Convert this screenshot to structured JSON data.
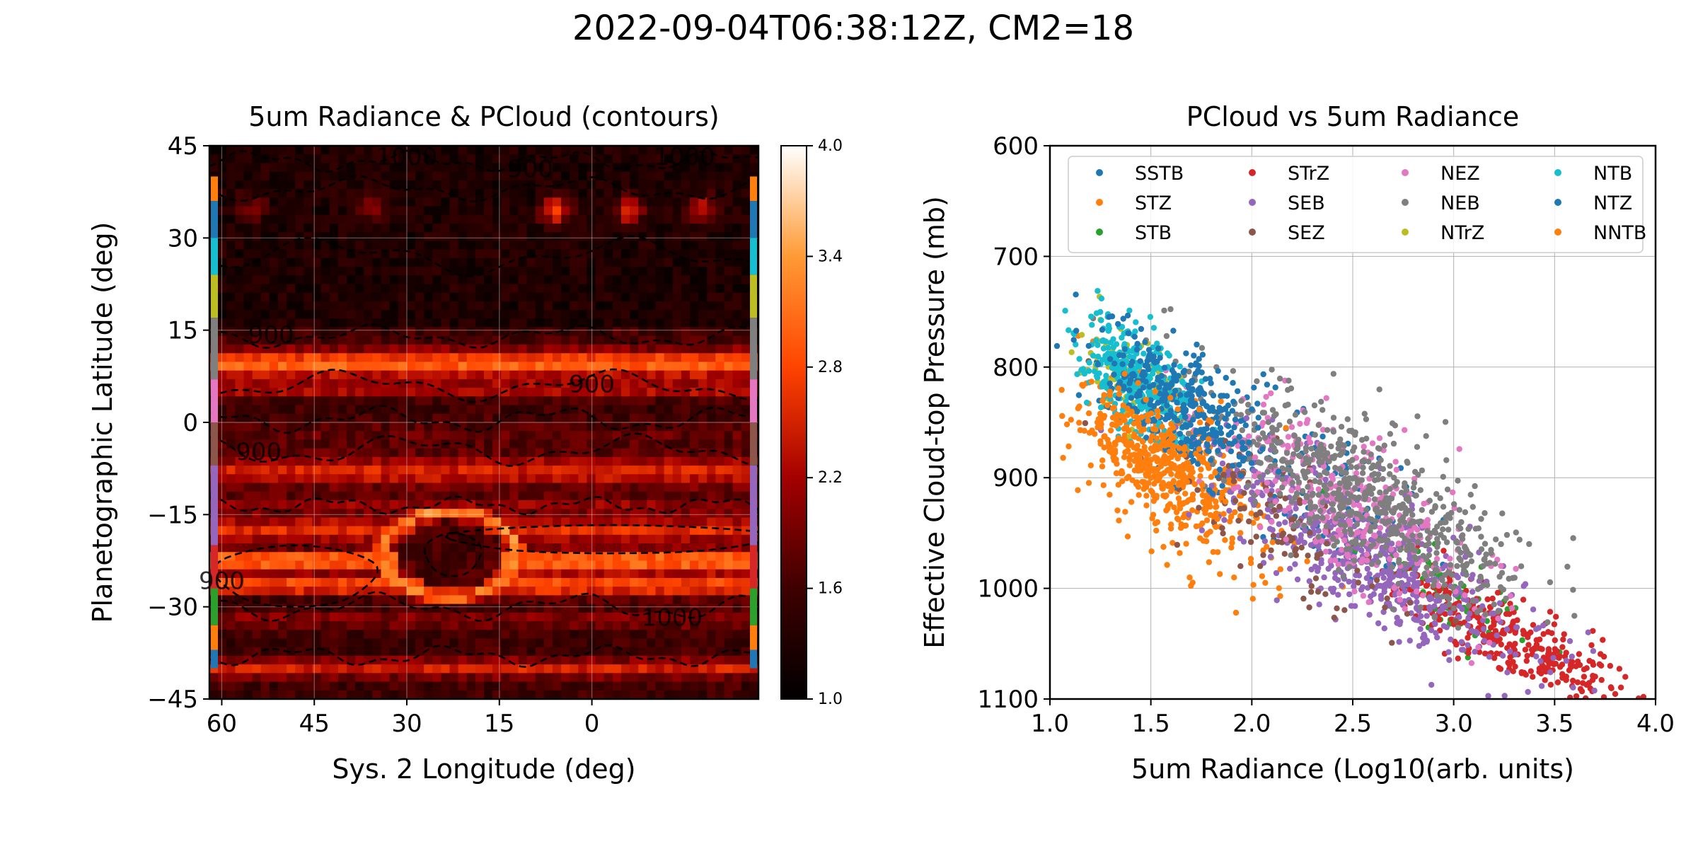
{
  "figure": {
    "suptitle": "2022-09-04T06:38:12Z, CM2=18"
  },
  "chart_data": [
    {
      "type": "heatmap",
      "title": "5um Radiance & PCloud (contours)",
      "xlabel": "Sys. 2 Longitude (deg)",
      "ylabel": "Planetographic Latitude (deg)",
      "xlim": [
        62,
        -27
      ],
      "ylim": [
        -45,
        45
      ],
      "xticks": [
        60,
        45,
        30,
        15,
        0
      ],
      "yticks": [
        45,
        30,
        15,
        0,
        -15,
        -30,
        -45
      ],
      "xtick_labels": [
        "60",
        "45",
        "30",
        "15",
        "0"
      ],
      "ytick_labels": [
        "45",
        "30",
        "15",
        "0",
        "−15",
        "−30",
        "−45"
      ],
      "grid": true,
      "colormap": "gist_heat",
      "colorbar": {
        "range": [
          1.0,
          4.0
        ],
        "ticks": [
          1.0,
          1.6,
          2.2,
          2.8,
          3.4,
          4.0
        ],
        "tick_labels": [
          "1.0",
          "1.6",
          "2.2",
          "2.8",
          "3.4",
          "4.0"
        ]
      },
      "bright_bands": [
        {
          "lat_center": 9.5,
          "lat_width": 4.5,
          "value": 3.0
        },
        {
          "lat_center": 5.5,
          "lat_width": 2.5,
          "value": 2.4
        },
        {
          "lat_center": -2,
          "lat_width": 4,
          "value": 1.8
        },
        {
          "lat_center": -8,
          "lat_width": 5,
          "value": 2.5
        },
        {
          "lat_center": -13.5,
          "lat_width": 3,
          "value": 2.1
        },
        {
          "lat_center": -17.5,
          "lat_width": 4,
          "value": 2.6
        },
        {
          "lat_center": -22.5,
          "lat_width": 3.5,
          "value": 3.2
        },
        {
          "lat_center": -26.5,
          "lat_width": 3.5,
          "value": 2.9
        },
        {
          "lat_center": -32,
          "lat_width": 3,
          "value": 2.0
        },
        {
          "lat_center": -40,
          "lat_width": 3,
          "value": 2.5
        }
      ],
      "dark_regions": [
        {
          "lat_range": [
            15,
            45
          ],
          "value": 1.25
        },
        {
          "lat_range": [
            -30,
            -19
          ],
          "lon_range": [
            62,
            35
          ],
          "value": 1.3
        }
      ],
      "hot_spots": [
        {
          "lon": 36,
          "lat": 35,
          "value": 2.2
        },
        {
          "lon": 55,
          "lat": 35,
          "value": 2.0
        },
        {
          "lon": 6,
          "lat": 34.5,
          "value": 2.9
        },
        {
          "lon": -6,
          "lat": 34.5,
          "value": 2.7
        },
        {
          "lon": -18,
          "lat": 34.5,
          "value": 2.5
        }
      ],
      "great_red_spot": {
        "lon_center": 23,
        "lat_center": -21.5,
        "lon_radius": 11,
        "lat_radius": 7,
        "ring_value": 3.3
      },
      "contour_labels": [
        {
          "text": "1000",
          "lon": 30,
          "lat": 43
        },
        {
          "text": "900",
          "lon": 10,
          "lat": 41
        },
        {
          "text": "1000",
          "lon": -15,
          "lat": 43
        },
        {
          "text": "900",
          "lon": 52,
          "lat": 14
        },
        {
          "text": "900",
          "lon": 0,
          "lat": 6
        },
        {
          "text": "900",
          "lon": 54,
          "lat": -5
        },
        {
          "text": "900",
          "lon": 60,
          "lat": -26
        },
        {
          "text": "1000",
          "lon": -13,
          "lat": -32
        }
      ],
      "side_bars": [
        {
          "lat_range": [
            40,
            36
          ],
          "color": "#ff7f0e"
        },
        {
          "lat_range": [
            36,
            30
          ],
          "color": "#1f77b4"
        },
        {
          "lat_range": [
            30,
            24
          ],
          "color": "#17becf"
        },
        {
          "lat_range": [
            24,
            17
          ],
          "color": "#bcbd22"
        },
        {
          "lat_range": [
            17,
            7
          ],
          "color": "#7f7f7f"
        },
        {
          "lat_range": [
            7,
            0
          ],
          "color": "#e377c2"
        },
        {
          "lat_range": [
            0,
            -7
          ],
          "color": "#8c564b"
        },
        {
          "lat_range": [
            -7,
            -20
          ],
          "color": "#9467bd"
        },
        {
          "lat_range": [
            -20,
            -27
          ],
          "color": "#d62728"
        },
        {
          "lat_range": [
            -27,
            -33
          ],
          "color": "#2ca02c"
        },
        {
          "lat_range": [
            -33,
            -37
          ],
          "color": "#ff7f0e"
        },
        {
          "lat_range": [
            -37,
            -40
          ],
          "color": "#1f77b4"
        }
      ]
    },
    {
      "type": "scatter",
      "title": "PCloud vs 5um Radiance",
      "xlabel": "5um Radiance (Log10(arb. units)",
      "ylabel": "Effective Cloud-top Pressure (mb)",
      "xlim": [
        1.0,
        4.0
      ],
      "ylim": [
        1100,
        600
      ],
      "y_inverted": true,
      "xticks": [
        1.0,
        1.5,
        2.0,
        2.5,
        3.0,
        3.5,
        4.0
      ],
      "xtick_labels": [
        "1.0",
        "1.5",
        "2.0",
        "2.5",
        "3.0",
        "3.5",
        "4.0"
      ],
      "yticks": [
        600,
        700,
        800,
        900,
        1000,
        1100
      ],
      "ytick_labels": [
        "600",
        "700",
        "800",
        "900",
        "1000",
        "1100"
      ],
      "grid": true,
      "legend_placement": "upper-left",
      "legend_columns": 4,
      "series": [
        {
          "name": "SSTB",
          "color": "#1f77b4",
          "n": 120,
          "cx": 2.3,
          "cy": 905,
          "sx": 0.4,
          "sy": 35
        },
        {
          "name": "STZ",
          "color": "#ff7f0e",
          "n": 330,
          "cx": 1.65,
          "cy": 905,
          "sx": 0.25,
          "sy": 35
        },
        {
          "name": "STB",
          "color": "#2ca02c",
          "n": 80,
          "cx": 2.95,
          "cy": 1003,
          "sx": 0.2,
          "sy": 18
        },
        {
          "name": "STrZ",
          "color": "#d62728",
          "n": 340,
          "cx": 3.3,
          "cy": 1048,
          "sx": 0.3,
          "sy": 18
        },
        {
          "name": "SEB",
          "color": "#9467bd",
          "n": 560,
          "cx": 2.6,
          "cy": 975,
          "sx": 0.42,
          "sy": 30
        },
        {
          "name": "SEZ",
          "color": "#8c564b",
          "n": 120,
          "cx": 2.1,
          "cy": 935,
          "sx": 0.3,
          "sy": 30
        },
        {
          "name": "NEZ",
          "color": "#e377c2",
          "n": 340,
          "cx": 2.45,
          "cy": 920,
          "sx": 0.35,
          "sy": 30
        },
        {
          "name": "NEB",
          "color": "#7f7f7f",
          "n": 620,
          "cx": 2.55,
          "cy": 915,
          "sx": 0.4,
          "sy": 30
        },
        {
          "name": "NTrZ",
          "color": "#bcbd22",
          "n": 90,
          "cx": 1.4,
          "cy": 810,
          "sx": 0.12,
          "sy": 22
        },
        {
          "name": "NTB",
          "color": "#17becf",
          "n": 360,
          "cx": 1.42,
          "cy": 810,
          "sx": 0.13,
          "sy": 22
        },
        {
          "name": "NTZ",
          "color": "#1f77b4",
          "n": 330,
          "cx": 1.65,
          "cy": 835,
          "sx": 0.2,
          "sy": 25
        },
        {
          "name": "NNTB",
          "color": "#ff7f0e",
          "n": 280,
          "cx": 1.5,
          "cy": 880,
          "sx": 0.15,
          "sy": 22
        }
      ]
    }
  ]
}
